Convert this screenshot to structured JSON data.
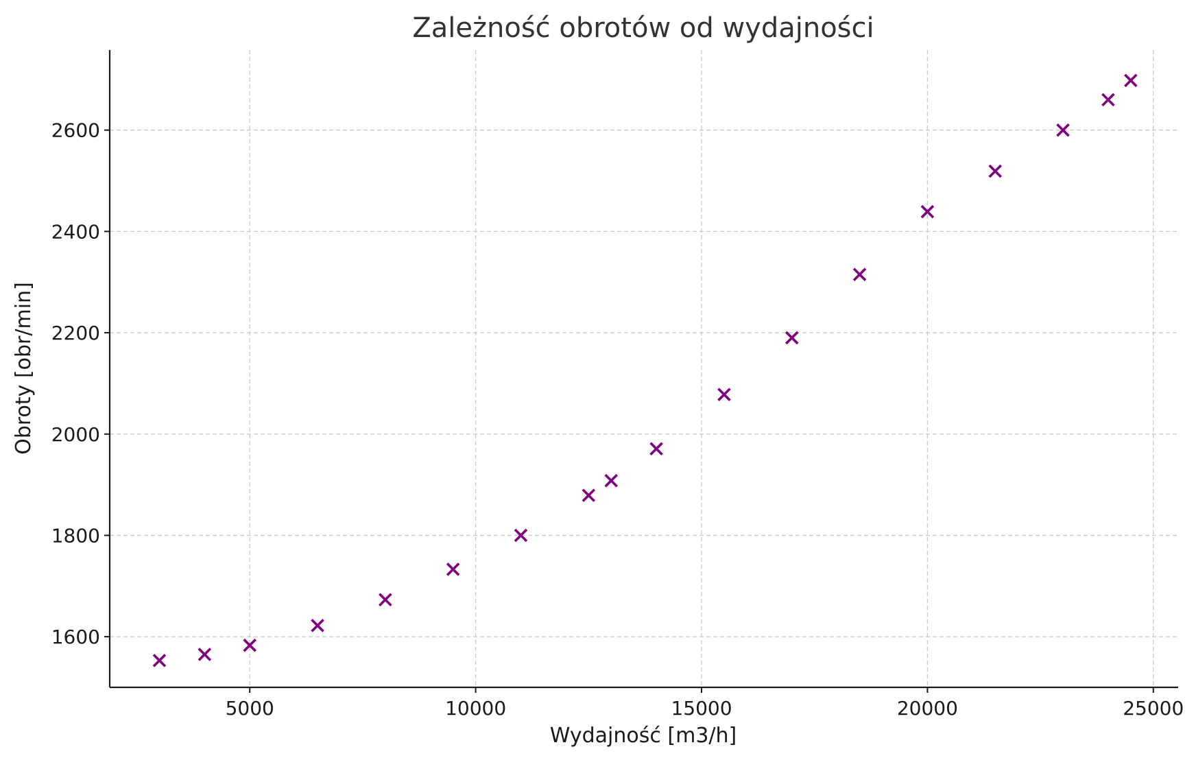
{
  "chart_data": {
    "type": "scatter",
    "title": "Zależność obrotów od wydajności",
    "xlabel": "Wydajność [m3/h]",
    "ylabel": "Obroty [obr/min]",
    "xlim": [
      1900,
      25550
    ],
    "ylim": [
      1500,
      2758
    ],
    "x_ticks": [
      5000,
      10000,
      15000,
      20000,
      25000
    ],
    "x_tick_labels": [
      "5000",
      "10000",
      "15000",
      "20000",
      "25000"
    ],
    "y_ticks": [
      1600,
      1800,
      2000,
      2200,
      2400,
      2600
    ],
    "y_tick_labels": [
      "1600",
      "1800",
      "2000",
      "2200",
      "2400",
      "2600"
    ],
    "grid": true,
    "marker": "x",
    "color": "#800080",
    "series": [
      {
        "x": [
          3000,
          4000,
          5000,
          6500,
          8000,
          9500,
          11000,
          12500,
          13000,
          14000,
          15500,
          17000,
          18500,
          20000,
          21500,
          23000,
          24000,
          24500
        ],
        "y": [
          1553,
          1565,
          1583,
          1622,
          1673,
          1733,
          1800,
          1879,
          1908,
          1971,
          2078,
          2190,
          2315,
          2439,
          2519,
          2600,
          2660,
          2698
        ]
      }
    ]
  }
}
